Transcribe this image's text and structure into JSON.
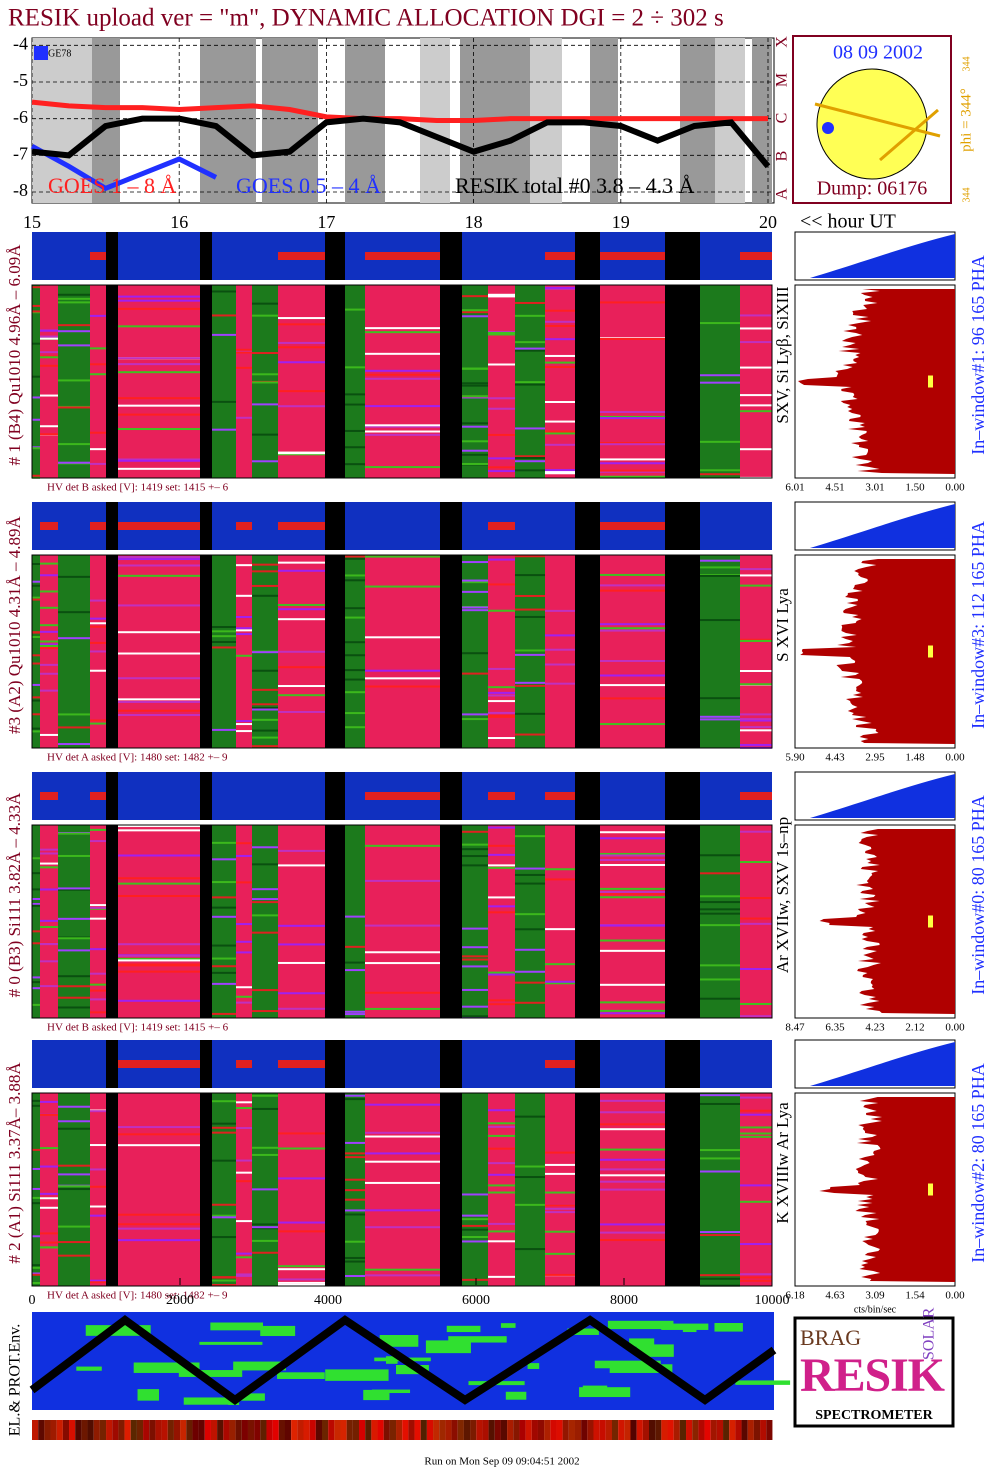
{
  "header": {
    "title": "RESIK upload ver = \"m\", DYNAMIC ALLOCATION  DGI =   2 ÷ 302 s"
  },
  "chart_data": {
    "type": "line",
    "x": [
      15,
      15.25,
      15.5,
      15.75,
      16,
      16.25,
      16.5,
      16.75,
      17,
      17.25,
      17.5,
      17.75,
      18,
      18.25,
      18.5,
      18.75,
      19,
      19.25,
      19.5,
      19.75,
      20
    ],
    "series": [
      {
        "name": "GOES 1 – 8 Å",
        "color": "#ff2020",
        "values": [
          -5.55,
          -5.65,
          -5.7,
          -5.7,
          -5.75,
          -5.7,
          -5.65,
          -5.75,
          -5.95,
          -6.0,
          -6.0,
          -6.05,
          -6.05,
          -6.0,
          -6.0,
          -6.0,
          -6.0,
          -6.0,
          -6.0,
          -6.0,
          -6.0
        ]
      },
      {
        "name": "GOES 0.5 – 4 Å",
        "color": "#2030ff",
        "values": [
          -6.75,
          -7.3,
          -7.9,
          -7.5,
          -7.1,
          -7.6,
          null,
          null,
          null,
          null,
          null,
          null,
          null,
          null,
          null,
          null,
          null,
          null,
          null,
          null,
          null
        ]
      },
      {
        "name": "RESIK total #0  3.8 – 4.3 Å",
        "color": "#000000",
        "values": [
          -6.9,
          -7.0,
          -6.2,
          -6.0,
          -6.0,
          -6.2,
          -7.0,
          -6.9,
          -6.1,
          -6.0,
          -6.1,
          -6.5,
          -6.9,
          -6.6,
          -6.1,
          -6.1,
          -6.2,
          -6.6,
          -6.2,
          -6.1,
          -7.3
        ]
      }
    ],
    "xlim": [
      15,
      20
    ],
    "ylim": [
      -8.3,
      -3.8
    ],
    "xticks": [
      15,
      16,
      17,
      18,
      19,
      20
    ],
    "yticks": [
      -4,
      -5,
      -6,
      -7,
      -8
    ],
    "grid": true,
    "xlabel": "<< hour UT",
    "annotation": "GE78",
    "class_labels": [
      "X",
      "M",
      "C",
      "B",
      "A"
    ]
  },
  "dial": {
    "date": "08 09 2002",
    "phi": "phi = 344°",
    "phi_small_top": "344",
    "phi_small_bottom": "344",
    "dump": "Dump: 06176"
  },
  "panels": [
    {
      "side": "# 1 (B4) Qu1010 4.96Å – 6.09Å",
      "lines": "SXV, Si Lyβ, SiXIII",
      "pha": "In–window#1:   96 165 PHA",
      "hv": "HV det B asked [V]:  1419 set:  1415  +–    6",
      "ticks": [
        "6.01",
        "4.51",
        "3.01",
        "1.50",
        "0.00"
      ]
    },
    {
      "side": "#3 (A2) Qu1010  4.31Å – 4.89Å",
      "lines": "S XVI Lya",
      "pha": "In–window#3:  112 165 PHA",
      "hv": "HV det A asked [V]:  1480 set:  1482  +–    9",
      "ticks": [
        "5.90",
        "4.43",
        "2.95",
        "1.48",
        "0.00"
      ]
    },
    {
      "side": "# 0 (B3) Si111  3.82Å – 4.33Å",
      "lines": "Ar XVIIw,  SXV 1s–np",
      "pha": "In–window#0:   80 165 PHA",
      "hv": "HV det B asked [V]:  1419 set:  1415  +–    6",
      "ticks": [
        "8.47",
        "6.35",
        "4.23",
        "2.12",
        "0.00"
      ]
    },
    {
      "side": "# 2 (A1) Si111  3.37Å– 3.88Å",
      "lines": "K XVIIIw  Ar Lya",
      "pha": "In–window#2:   80 165 PHA",
      "hv": "HV det A asked [V]:  1480 set:  1482  +–    9",
      "ticks": [
        "6.18",
        "4.63",
        "3.09",
        "1.54",
        "0.00"
      ]
    }
  ],
  "bottom": {
    "xticks": [
      0,
      2000,
      4000,
      6000,
      8000,
      10000
    ],
    "pha_unit": "cts/bin/sec",
    "env": "EL.& PROT.Env."
  },
  "logo": {
    "brag": "BRAG",
    "resik": "RESIK",
    "solar": "SOLAR",
    "name": "SPECTROMETER"
  },
  "footer": "Run on Mon Sep 09 09:04:51 2002"
}
